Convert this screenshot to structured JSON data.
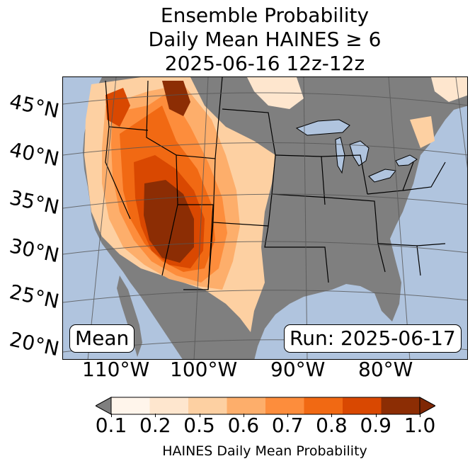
{
  "title": {
    "line1": "Ensemble Probability",
    "line2": "Daily Mean HAINES ≥ 6",
    "line3": "2025-06-16 12z-12z"
  },
  "map": {
    "latitude_labels": [
      "45°N",
      "40°N",
      "35°N",
      "30°N",
      "25°N",
      "20°N"
    ],
    "longitude_labels": [
      "110°W",
      "100°W",
      "90°W",
      "80°W"
    ],
    "stat_label": "Mean",
    "run_label": "Run: 2025-06-17",
    "colors": {
      "ocean_lakes": "#b0c4de",
      "land_below_threshold": "#7f7f7f",
      "borders": "#000000",
      "graticule": "#555555"
    }
  },
  "colorbar": {
    "label": "HAINES Daily Mean Probability",
    "ticks": [
      "0.1",
      "0.2",
      "0.5",
      "0.6",
      "0.7",
      "0.8",
      "0.9",
      "1.0"
    ],
    "colors": [
      "#fff5eb",
      "#fee6ce",
      "#fdd0a2",
      "#fdae6b",
      "#fd8d3c",
      "#f16913",
      "#d94801",
      "#8c2d04"
    ],
    "under_color": "#7f7f7f",
    "over_color": "#7f2704"
  }
}
